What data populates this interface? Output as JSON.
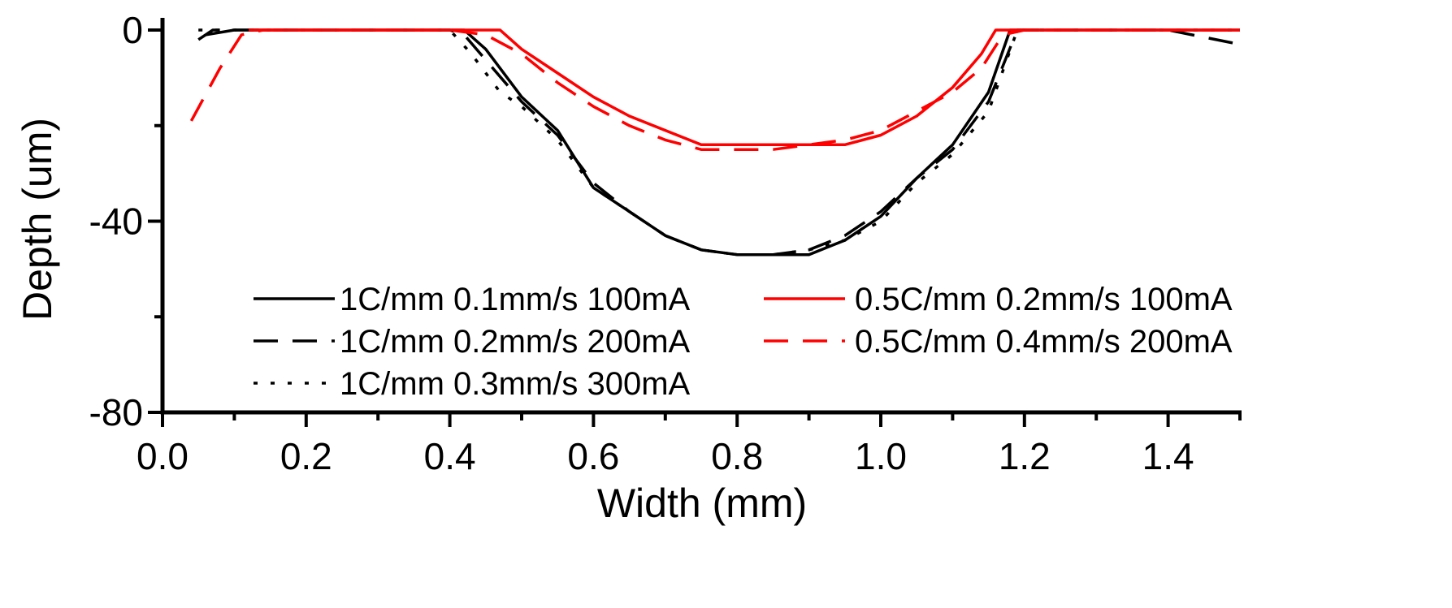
{
  "chart_data": {
    "type": "line",
    "xlabel": "Width (mm)",
    "ylabel": "Depth (um)",
    "xlim": [
      0.0,
      1.5
    ],
    "ylim": [
      -80,
      0
    ],
    "xticks": [
      0.0,
      0.2,
      0.4,
      0.6,
      0.8,
      1.0,
      1.2,
      1.4
    ],
    "xtick_labels": [
      "0.0",
      "0.2",
      "0.4",
      "0.6",
      "0.8",
      "1.0",
      "1.2",
      "1.4"
    ],
    "yticks": [
      0,
      -40,
      -80
    ],
    "ytick_labels": [
      "0",
      "-40",
      "-80"
    ],
    "grid": false,
    "legend_position": "bottom-center",
    "series": [
      {
        "name": "1C/mm    0.1mm/s 100mA",
        "color": "#000000",
        "dash": "solid",
        "points": [
          [
            0.06,
            -1
          ],
          [
            0.1,
            0
          ],
          [
            0.2,
            0
          ],
          [
            0.3,
            0
          ],
          [
            0.4,
            0
          ],
          [
            0.42,
            0
          ],
          [
            0.45,
            -4
          ],
          [
            0.5,
            -14
          ],
          [
            0.55,
            -21
          ],
          [
            0.6,
            -33
          ],
          [
            0.65,
            -38
          ],
          [
            0.7,
            -43
          ],
          [
            0.75,
            -46
          ],
          [
            0.8,
            -47
          ],
          [
            0.85,
            -47
          ],
          [
            0.9,
            -47
          ],
          [
            0.95,
            -44
          ],
          [
            1.0,
            -39
          ],
          [
            1.05,
            -31
          ],
          [
            1.1,
            -24
          ],
          [
            1.15,
            -13
          ],
          [
            1.18,
            0
          ],
          [
            1.2,
            0
          ],
          [
            1.3,
            0
          ],
          [
            1.4,
            0
          ],
          [
            1.5,
            0
          ]
        ]
      },
      {
        "name": "1C/mm    0.2mm/s 200mA",
        "color": "#000000",
        "dash": "long-dash",
        "points": [
          [
            0.05,
            -2
          ],
          [
            0.07,
            0
          ],
          [
            0.2,
            0
          ],
          [
            0.3,
            0
          ],
          [
            0.4,
            0
          ],
          [
            0.42,
            -1
          ],
          [
            0.46,
            -8
          ],
          [
            0.5,
            -15
          ],
          [
            0.55,
            -22
          ],
          [
            0.6,
            -32
          ],
          [
            0.65,
            -38
          ],
          [
            0.7,
            -43
          ],
          [
            0.75,
            -46
          ],
          [
            0.8,
            -47
          ],
          [
            0.85,
            -47
          ],
          [
            0.9,
            -46
          ],
          [
            0.95,
            -43
          ],
          [
            1.0,
            -38
          ],
          [
            1.05,
            -31
          ],
          [
            1.1,
            -25
          ],
          [
            1.15,
            -15
          ],
          [
            1.19,
            0
          ],
          [
            1.2,
            0
          ],
          [
            1.3,
            0
          ],
          [
            1.4,
            0
          ],
          [
            1.5,
            -3
          ]
        ]
      },
      {
        "name": "1C/mm    0.3mm/s 300mA",
        "color": "#000000",
        "dash": "dotted",
        "points": [
          [
            0.05,
            0
          ],
          [
            0.1,
            0
          ],
          [
            0.2,
            0
          ],
          [
            0.3,
            0
          ],
          [
            0.4,
            0
          ],
          [
            0.43,
            -5
          ],
          [
            0.47,
            -13
          ],
          [
            0.5,
            -16
          ],
          [
            0.55,
            -23
          ],
          [
            0.6,
            -33
          ],
          [
            0.65,
            -38
          ],
          [
            0.7,
            -43
          ],
          [
            0.75,
            -46
          ],
          [
            0.8,
            -47
          ],
          [
            0.85,
            -47
          ],
          [
            0.9,
            -46
          ],
          [
            0.95,
            -44
          ],
          [
            1.0,
            -40
          ],
          [
            1.05,
            -32
          ],
          [
            1.1,
            -26
          ],
          [
            1.15,
            -17
          ],
          [
            1.19,
            0
          ],
          [
            1.2,
            0
          ],
          [
            1.3,
            0
          ],
          [
            1.4,
            0
          ],
          [
            1.5,
            0
          ]
        ]
      },
      {
        "name": "0.5C/mm 0.2mm/s 100mA",
        "color": "#ff0000",
        "dash": "solid",
        "points": [
          [
            0.12,
            0
          ],
          [
            0.2,
            0
          ],
          [
            0.3,
            0
          ],
          [
            0.4,
            0
          ],
          [
            0.47,
            0
          ],
          [
            0.5,
            -4
          ],
          [
            0.55,
            -9
          ],
          [
            0.6,
            -14
          ],
          [
            0.65,
            -18
          ],
          [
            0.7,
            -21
          ],
          [
            0.75,
            -24
          ],
          [
            0.8,
            -24
          ],
          [
            0.85,
            -24
          ],
          [
            0.9,
            -24
          ],
          [
            0.95,
            -24
          ],
          [
            1.0,
            -22
          ],
          [
            1.05,
            -18
          ],
          [
            1.1,
            -12
          ],
          [
            1.14,
            -5
          ],
          [
            1.16,
            0
          ],
          [
            1.2,
            0
          ],
          [
            1.3,
            0
          ],
          [
            1.4,
            0
          ],
          [
            1.5,
            0
          ]
        ]
      },
      {
        "name": "0.5C/mm 0.4mm/s 200mA",
        "color": "#ff0000",
        "dash": "long-dash",
        "points": [
          [
            0.04,
            -19
          ],
          [
            0.08,
            -8
          ],
          [
            0.11,
            -1
          ],
          [
            0.14,
            0
          ],
          [
            0.2,
            0
          ],
          [
            0.3,
            0
          ],
          [
            0.4,
            0
          ],
          [
            0.45,
            -1
          ],
          [
            0.5,
            -5
          ],
          [
            0.55,
            -11
          ],
          [
            0.6,
            -16
          ],
          [
            0.65,
            -20
          ],
          [
            0.7,
            -23
          ],
          [
            0.75,
            -25
          ],
          [
            0.8,
            -25
          ],
          [
            0.85,
            -25
          ],
          [
            0.9,
            -24
          ],
          [
            0.95,
            -23
          ],
          [
            1.0,
            -21
          ],
          [
            1.05,
            -17
          ],
          [
            1.1,
            -13
          ],
          [
            1.14,
            -8
          ],
          [
            1.17,
            -1
          ],
          [
            1.2,
            0
          ],
          [
            1.3,
            0
          ],
          [
            1.4,
            0
          ],
          [
            1.5,
            0
          ]
        ]
      }
    ]
  }
}
